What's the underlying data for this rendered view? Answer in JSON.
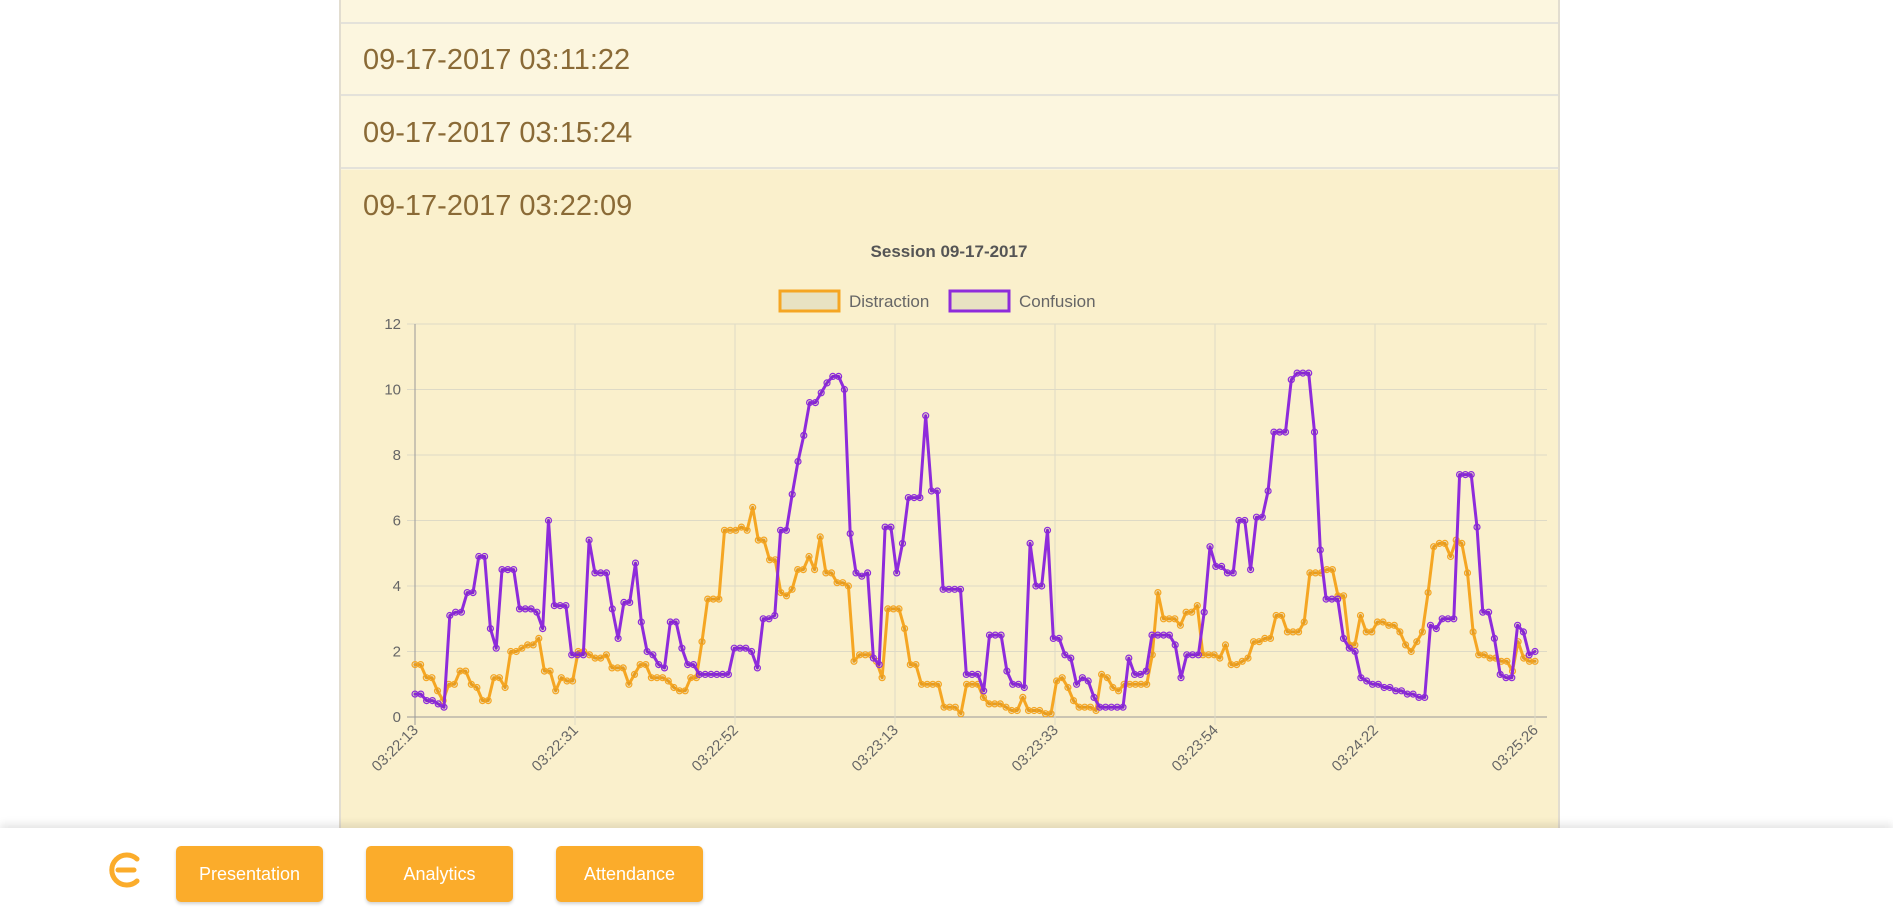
{
  "sessions": [
    {
      "label": "09-17-2017 03:11:22"
    },
    {
      "label": "09-17-2017 03:15:24"
    },
    {
      "label": "09-17-2017 03:22:09"
    }
  ],
  "nav": {
    "presentation": "Presentation",
    "analytics": "Analytics",
    "attendance": "Attendance"
  },
  "colors": {
    "brand": "#fbac2b",
    "distraction": "#f5a623",
    "confusion": "#8e2bdb",
    "session_text": "#8a6a36"
  },
  "icons": {
    "logo": "e-logo-icon"
  },
  "chart_data": {
    "type": "line",
    "title": "Session 09-17-2017",
    "legend_position": "top",
    "grid": true,
    "ylim": [
      0,
      12
    ],
    "yticks": [
      0,
      2,
      4,
      6,
      8,
      10,
      12
    ],
    "x_tick_labels": [
      "03:22:13",
      "03:22:31",
      "03:22:52",
      "03:23:13",
      "03:23:33",
      "03:23:54",
      "03:24:22",
      "03:25:26"
    ],
    "series": [
      {
        "name": "Distraction",
        "color": "#f5a623",
        "values": [
          1.6,
          1.6,
          1.2,
          1.2,
          0.8,
          0.5,
          1.0,
          1.0,
          1.4,
          1.4,
          1.0,
          0.9,
          0.5,
          0.5,
          1.2,
          1.2,
          0.9,
          2.0,
          2.0,
          2.1,
          2.2,
          2.2,
          2.4,
          1.4,
          1.4,
          0.8,
          1.2,
          1.1,
          1.1,
          2.0,
          2.0,
          1.9,
          1.8,
          1.8,
          1.9,
          1.5,
          1.5,
          1.5,
          1.0,
          1.3,
          1.6,
          1.6,
          1.2,
          1.2,
          1.2,
          1.1,
          0.9,
          0.8,
          0.8,
          1.2,
          1.2,
          2.3,
          3.6,
          3.6,
          3.6,
          5.7,
          5.7,
          5.7,
          5.8,
          5.7,
          6.4,
          5.4,
          5.4,
          4.8,
          4.8,
          3.8,
          3.7,
          3.9,
          4.5,
          4.5,
          4.9,
          4.5,
          5.5,
          4.4,
          4.4,
          4.1,
          4.1,
          4.0,
          1.7,
          1.9,
          1.9,
          1.9,
          1.7,
          1.2,
          3.3,
          3.3,
          3.3,
          2.7,
          1.6,
          1.6,
          1.0,
          1.0,
          1.0,
          1.0,
          0.3,
          0.3,
          0.3,
          0.1,
          1.0,
          1.0,
          1.0,
          0.6,
          0.4,
          0.4,
          0.4,
          0.3,
          0.2,
          0.2,
          0.6,
          0.2,
          0.2,
          0.2,
          0.1,
          0.1,
          1.1,
          1.2,
          0.9,
          0.5,
          0.3,
          0.3,
          0.3,
          0.2,
          1.3,
          1.2,
          0.9,
          0.8,
          1.0,
          1.0,
          1.0,
          1.0,
          1.0,
          1.9,
          3.8,
          3.0,
          3.0,
          3.0,
          2.8,
          3.2,
          3.2,
          3.4,
          1.9,
          1.9,
          1.9,
          1.8,
          2.2,
          1.6,
          1.6,
          1.7,
          1.8,
          2.3,
          2.3,
          2.4,
          2.4,
          3.1,
          3.1,
          2.6,
          2.6,
          2.6,
          2.9,
          4.4,
          4.4,
          4.4,
          4.5,
          4.5,
          3.7,
          3.7,
          2.2,
          2.2,
          3.1,
          2.6,
          2.6,
          2.9,
          2.9,
          2.8,
          2.8,
          2.6,
          2.2,
          2.0,
          2.3,
          2.6,
          3.8,
          5.2,
          5.3,
          5.3,
          4.9,
          5.4,
          5.3,
          4.4,
          2.6,
          1.9,
          1.9,
          1.8,
          1.8,
          1.7,
          1.7,
          1.4,
          2.3,
          1.8,
          1.7,
          1.7
        ]
      },
      {
        "name": "Confusion",
        "color": "#8e2bdb",
        "values": [
          0.7,
          0.7,
          0.5,
          0.5,
          0.4,
          0.3,
          3.1,
          3.2,
          3.2,
          3.8,
          3.8,
          4.9,
          4.9,
          2.7,
          2.1,
          4.5,
          4.5,
          4.5,
          3.3,
          3.3,
          3.3,
          3.2,
          2.7,
          6.0,
          3.4,
          3.4,
          3.4,
          1.9,
          1.9,
          1.9,
          5.4,
          4.4,
          4.4,
          4.4,
          3.3,
          2.4,
          3.5,
          3.5,
          4.7,
          2.9,
          2.0,
          1.9,
          1.6,
          1.5,
          2.9,
          2.9,
          2.1,
          1.6,
          1.6,
          1.3,
          1.3,
          1.3,
          1.3,
          1.3,
          1.3,
          2.1,
          2.1,
          2.1,
          2.0,
          1.5,
          3.0,
          3.0,
          3.1,
          5.7,
          5.7,
          6.8,
          7.8,
          8.6,
          9.6,
          9.6,
          9.9,
          10.2,
          10.4,
          10.4,
          10.0,
          5.6,
          4.4,
          4.3,
          4.4,
          1.8,
          1.6,
          5.8,
          5.8,
          4.4,
          5.3,
          6.7,
          6.7,
          6.7,
          9.2,
          6.9,
          6.9,
          3.9,
          3.9,
          3.9,
          3.9,
          1.3,
          1.3,
          1.3,
          0.8,
          2.5,
          2.5,
          2.5,
          1.4,
          1.0,
          1.0,
          0.9,
          5.3,
          4.0,
          4.0,
          5.7,
          2.4,
          2.4,
          1.9,
          1.8,
          1.0,
          1.2,
          1.1,
          0.6,
          0.3,
          0.3,
          0.3,
          0.3,
          0.3,
          1.8,
          1.3,
          1.3,
          1.4,
          2.5,
          2.5,
          2.5,
          2.5,
          2.2,
          1.2,
          1.9,
          1.9,
          1.9,
          3.2,
          5.2,
          4.6,
          4.6,
          4.4,
          4.4,
          6.0,
          6.0,
          4.5,
          6.1,
          6.1,
          6.9,
          8.7,
          8.7,
          8.7,
          10.3,
          10.5,
          10.5,
          10.5,
          8.7,
          5.1,
          3.6,
          3.6,
          3.6,
          2.4,
          2.1,
          2.0,
          1.2,
          1.1,
          1.0,
          1.0,
          0.9,
          0.9,
          0.8,
          0.8,
          0.7,
          0.7,
          0.6,
          0.6,
          2.8,
          2.7,
          3.0,
          3.0,
          3.0,
          7.4,
          7.4,
          7.4,
          5.8,
          3.2,
          3.2,
          2.4,
          1.3,
          1.2,
          1.2,
          2.8,
          2.6,
          1.9,
          2.0
        ]
      }
    ]
  }
}
